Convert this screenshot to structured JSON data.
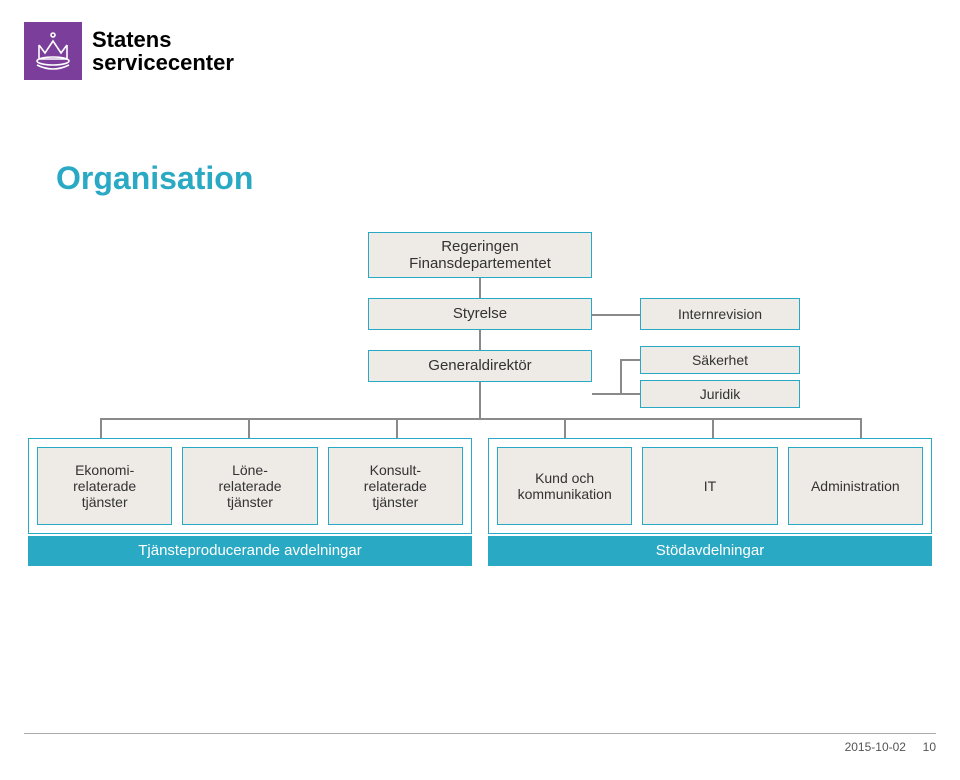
{
  "colors": {
    "accent_teal": "#2aa9c4",
    "logo_purple": "#7b3f9b",
    "box_bg": "#eeeae5",
    "box_border": "#2aa9c4",
    "title": "#2aa9c4",
    "line": "#8a8a8a"
  },
  "logo_text_line1": "Statens",
  "logo_text_line2": "servicecenter",
  "title": "Organisation",
  "org": {
    "top": {
      "line1": "Regeringen",
      "line2": "Finansdepartementet"
    },
    "styrelse": "Styrelse",
    "generaldirektor": "Generaldirektör",
    "internrevision": "Internrevision",
    "sakerhet": "Säkerhet",
    "juridik": "Juridik"
  },
  "departments": {
    "producing_label": "Tjänsteproducerande avdelningar",
    "support_label": "Stödavdelningar",
    "producing": [
      "Ekonomi-\nrelaterade\ntjänster",
      "Löne-\nrelaterade\ntjänster",
      "Konsult-\nrelaterade\ntjänster"
    ],
    "support": [
      "Kund och\nkommunikation",
      "IT",
      "Administration"
    ]
  },
  "footer": {
    "date": "2015-10-02",
    "page": "10"
  }
}
